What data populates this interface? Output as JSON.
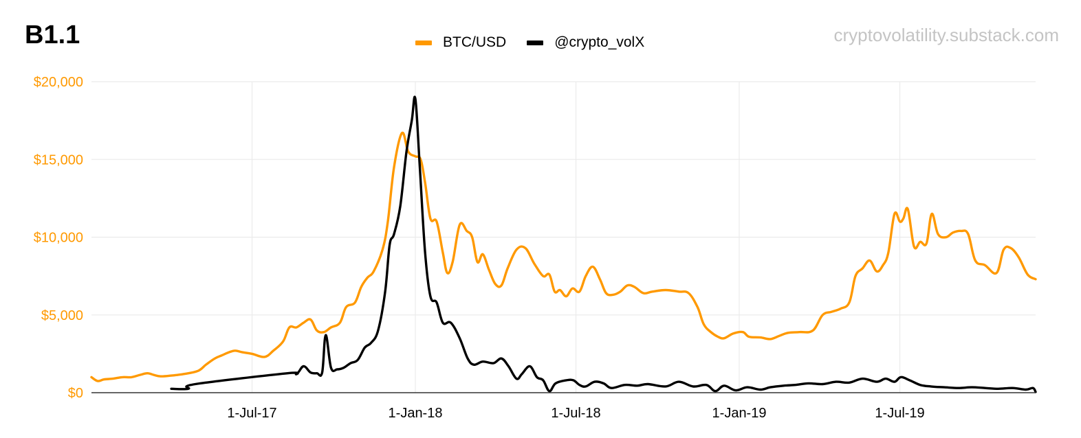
{
  "figure_label": "B1.1",
  "watermark": "cryptovolatility.substack.com",
  "colors": {
    "btc": "#FF9900",
    "volx": "#000000",
    "grid": "#EBEBEB",
    "axis": "#333333"
  },
  "chart_data": {
    "type": "line",
    "title": "",
    "xlabel": "",
    "ylabel": "",
    "x_range": [
      "2017-01-01",
      "2019-12-01"
    ],
    "ylim": [
      0,
      20000
    ],
    "y_ticks": [
      0,
      5000,
      10000,
      15000,
      20000
    ],
    "y_tick_labels": [
      "$0",
      "$5,000",
      "$10,000",
      "$15,000",
      "$20,000"
    ],
    "x_ticks": [
      "2017-07-01",
      "2018-01-01",
      "2018-07-01",
      "2019-01-01",
      "2019-07-01"
    ],
    "x_tick_labels": [
      "1-Jul-17",
      "1-Jan-18",
      "1-Jul-18",
      "1-Jan-19",
      "1-Jul-19"
    ],
    "grid": true,
    "legend_position": "top-center",
    "series": [
      {
        "name": "BTC/USD",
        "color": "#FF9900",
        "points": [
          [
            "2017-01-01",
            1000
          ],
          [
            "2017-01-08",
            750
          ],
          [
            "2017-01-15",
            850
          ],
          [
            "2017-01-25",
            900
          ],
          [
            "2017-02-05",
            1000
          ],
          [
            "2017-02-15",
            1000
          ],
          [
            "2017-02-25",
            1150
          ],
          [
            "2017-03-05",
            1250
          ],
          [
            "2017-03-12",
            1150
          ],
          [
            "2017-03-20",
            1050
          ],
          [
            "2017-04-01",
            1100
          ],
          [
            "2017-04-15",
            1200
          ],
          [
            "2017-05-01",
            1400
          ],
          [
            "2017-05-10",
            1800
          ],
          [
            "2017-05-20",
            2200
          ],
          [
            "2017-05-28",
            2400
          ],
          [
            "2017-06-05",
            2600
          ],
          [
            "2017-06-12",
            2700
          ],
          [
            "2017-06-20",
            2600
          ],
          [
            "2017-07-01",
            2500
          ],
          [
            "2017-07-15",
            2300
          ],
          [
            "2017-07-25",
            2700
          ],
          [
            "2017-08-05",
            3300
          ],
          [
            "2017-08-12",
            4200
          ],
          [
            "2017-08-20",
            4200
          ],
          [
            "2017-08-28",
            4500
          ],
          [
            "2017-09-05",
            4700
          ],
          [
            "2017-09-12",
            4000
          ],
          [
            "2017-09-20",
            3900
          ],
          [
            "2017-09-28",
            4200
          ],
          [
            "2017-10-08",
            4500
          ],
          [
            "2017-10-15",
            5500
          ],
          [
            "2017-10-25",
            5800
          ],
          [
            "2017-11-01",
            6800
          ],
          [
            "2017-11-08",
            7400
          ],
          [
            "2017-11-15",
            7800
          ],
          [
            "2017-11-25",
            9200
          ],
          [
            "2017-12-01",
            11000
          ],
          [
            "2017-12-08",
            14500
          ],
          [
            "2017-12-17",
            16700
          ],
          [
            "2017-12-24",
            15500
          ],
          [
            "2018-01-01",
            15200
          ],
          [
            "2018-01-07",
            15000
          ],
          [
            "2018-01-12",
            13500
          ],
          [
            "2018-01-18",
            11200
          ],
          [
            "2018-01-25",
            11000
          ],
          [
            "2018-02-01",
            9000
          ],
          [
            "2018-02-06",
            7700
          ],
          [
            "2018-02-12",
            8400
          ],
          [
            "2018-02-20",
            10800
          ],
          [
            "2018-02-28",
            10400
          ],
          [
            "2018-03-06",
            10000
          ],
          [
            "2018-03-12",
            8400
          ],
          [
            "2018-03-18",
            8900
          ],
          [
            "2018-03-25",
            7900
          ],
          [
            "2018-04-01",
            7000
          ],
          [
            "2018-04-08",
            6900
          ],
          [
            "2018-04-15",
            8000
          ],
          [
            "2018-04-25",
            9200
          ],
          [
            "2018-05-05",
            9300
          ],
          [
            "2018-05-15",
            8300
          ],
          [
            "2018-05-25",
            7500
          ],
          [
            "2018-06-01",
            7600
          ],
          [
            "2018-06-07",
            6500
          ],
          [
            "2018-06-13",
            6600
          ],
          [
            "2018-06-20",
            6200
          ],
          [
            "2018-06-27",
            6700
          ],
          [
            "2018-07-05",
            6500
          ],
          [
            "2018-07-12",
            7500
          ],
          [
            "2018-07-20",
            8100
          ],
          [
            "2018-07-28",
            7300
          ],
          [
            "2018-08-04",
            6400
          ],
          [
            "2018-08-12",
            6300
          ],
          [
            "2018-08-20",
            6500
          ],
          [
            "2018-08-28",
            6900
          ],
          [
            "2018-09-05",
            6800
          ],
          [
            "2018-09-15",
            6400
          ],
          [
            "2018-09-25",
            6500
          ],
          [
            "2018-10-10",
            6600
          ],
          [
            "2018-10-25",
            6500
          ],
          [
            "2018-11-05",
            6400
          ],
          [
            "2018-11-15",
            5500
          ],
          [
            "2018-11-22",
            4400
          ],
          [
            "2018-11-30",
            3900
          ],
          [
            "2018-12-08",
            3600
          ],
          [
            "2018-12-15",
            3500
          ],
          [
            "2018-12-25",
            3800
          ],
          [
            "2019-01-05",
            3900
          ],
          [
            "2019-01-12",
            3600
          ],
          [
            "2019-01-25",
            3550
          ],
          [
            "2019-02-05",
            3450
          ],
          [
            "2019-02-15",
            3650
          ],
          [
            "2019-02-25",
            3850
          ],
          [
            "2019-03-10",
            3900
          ],
          [
            "2019-03-25",
            4000
          ],
          [
            "2019-04-05",
            5000
          ],
          [
            "2019-04-15",
            5200
          ],
          [
            "2019-04-25",
            5400
          ],
          [
            "2019-05-05",
            5800
          ],
          [
            "2019-05-12",
            7500
          ],
          [
            "2019-05-20",
            8000
          ],
          [
            "2019-05-28",
            8500
          ],
          [
            "2019-06-05",
            7800
          ],
          [
            "2019-06-12",
            8200
          ],
          [
            "2019-06-18",
            9000
          ],
          [
            "2019-06-25",
            11500
          ],
          [
            "2019-07-01",
            11000
          ],
          [
            "2019-07-05",
            11200
          ],
          [
            "2019-07-10",
            11800
          ],
          [
            "2019-07-17",
            9400
          ],
          [
            "2019-07-24",
            9700
          ],
          [
            "2019-07-31",
            9600
          ],
          [
            "2019-08-06",
            11500
          ],
          [
            "2019-08-13",
            10200
          ],
          [
            "2019-08-22",
            10000
          ],
          [
            "2019-08-30",
            10300
          ],
          [
            "2019-09-08",
            10400
          ],
          [
            "2019-09-16",
            10200
          ],
          [
            "2019-09-24",
            8500
          ],
          [
            "2019-10-05",
            8200
          ],
          [
            "2019-10-18",
            7700
          ],
          [
            "2019-10-26",
            9200
          ],
          [
            "2019-11-03",
            9300
          ],
          [
            "2019-11-12",
            8700
          ],
          [
            "2019-11-22",
            7600
          ],
          [
            "2019-12-01",
            7300
          ]
        ]
      },
      {
        "name": "@crypto_volX",
        "color": "#000000",
        "points": [
          [
            "2017-04-01",
            250
          ],
          [
            "2017-04-20",
            250
          ],
          [
            "2017-04-28",
            550
          ],
          [
            "2017-08-10",
            1250
          ],
          [
            "2017-08-20",
            1200
          ],
          [
            "2017-08-28",
            1700
          ],
          [
            "2017-09-05",
            1300
          ],
          [
            "2017-09-12",
            1250
          ],
          [
            "2017-09-18",
            1300
          ],
          [
            "2017-09-22",
            3700
          ],
          [
            "2017-09-28",
            1600
          ],
          [
            "2017-10-05",
            1500
          ],
          [
            "2017-10-12",
            1600
          ],
          [
            "2017-10-20",
            1900
          ],
          [
            "2017-10-28",
            2100
          ],
          [
            "2017-11-05",
            2900
          ],
          [
            "2017-11-12",
            3200
          ],
          [
            "2017-11-20",
            4000
          ],
          [
            "2017-11-28",
            6500
          ],
          [
            "2017-12-03",
            9500
          ],
          [
            "2017-12-08",
            10200
          ],
          [
            "2017-12-15",
            12000
          ],
          [
            "2017-12-22",
            15500
          ],
          [
            "2017-12-28",
            17500
          ],
          [
            "2018-01-01",
            18900
          ],
          [
            "2018-01-06",
            14500
          ],
          [
            "2018-01-12",
            9000
          ],
          [
            "2018-01-18",
            6200
          ],
          [
            "2018-01-25",
            5800
          ],
          [
            "2018-02-01",
            4500
          ],
          [
            "2018-02-10",
            4500
          ],
          [
            "2018-02-20",
            3500
          ],
          [
            "2018-03-01",
            2200
          ],
          [
            "2018-03-08",
            1800
          ],
          [
            "2018-03-18",
            2000
          ],
          [
            "2018-03-30",
            1900
          ],
          [
            "2018-04-08",
            2200
          ],
          [
            "2018-04-16",
            1700
          ],
          [
            "2018-04-25",
            900
          ],
          [
            "2018-05-01",
            1200
          ],
          [
            "2018-05-10",
            1700
          ],
          [
            "2018-05-18",
            1000
          ],
          [
            "2018-05-25",
            800
          ],
          [
            "2018-06-01",
            100
          ],
          [
            "2018-06-08",
            600
          ],
          [
            "2018-06-20",
            800
          ],
          [
            "2018-06-28",
            800
          ],
          [
            "2018-07-05",
            500
          ],
          [
            "2018-07-12",
            400
          ],
          [
            "2018-07-22",
            700
          ],
          [
            "2018-08-01",
            600
          ],
          [
            "2018-08-10",
            300
          ],
          [
            "2018-08-25",
            500
          ],
          [
            "2018-09-08",
            450
          ],
          [
            "2018-09-20",
            550
          ],
          [
            "2018-10-10",
            400
          ],
          [
            "2018-10-25",
            700
          ],
          [
            "2018-11-10",
            400
          ],
          [
            "2018-11-25",
            500
          ],
          [
            "2018-12-05",
            100
          ],
          [
            "2018-12-15",
            450
          ],
          [
            "2018-12-28",
            150
          ],
          [
            "2019-01-10",
            350
          ],
          [
            "2019-01-25",
            200
          ],
          [
            "2019-02-05",
            350
          ],
          [
            "2019-02-20",
            450
          ],
          [
            "2019-03-05",
            500
          ],
          [
            "2019-03-20",
            600
          ],
          [
            "2019-04-05",
            550
          ],
          [
            "2019-04-20",
            700
          ],
          [
            "2019-05-05",
            650
          ],
          [
            "2019-05-20",
            900
          ],
          [
            "2019-06-05",
            700
          ],
          [
            "2019-06-15",
            900
          ],
          [
            "2019-06-25",
            700
          ],
          [
            "2019-07-02",
            1000
          ],
          [
            "2019-07-12",
            800
          ],
          [
            "2019-07-24",
            500
          ],
          [
            "2019-08-05",
            400
          ],
          [
            "2019-08-20",
            350
          ],
          [
            "2019-09-05",
            300
          ],
          [
            "2019-09-20",
            350
          ],
          [
            "2019-10-05",
            300
          ],
          [
            "2019-10-20",
            250
          ],
          [
            "2019-11-05",
            300
          ],
          [
            "2019-11-20",
            200
          ],
          [
            "2019-11-28",
            300
          ],
          [
            "2019-12-01",
            50
          ]
        ]
      }
    ]
  }
}
